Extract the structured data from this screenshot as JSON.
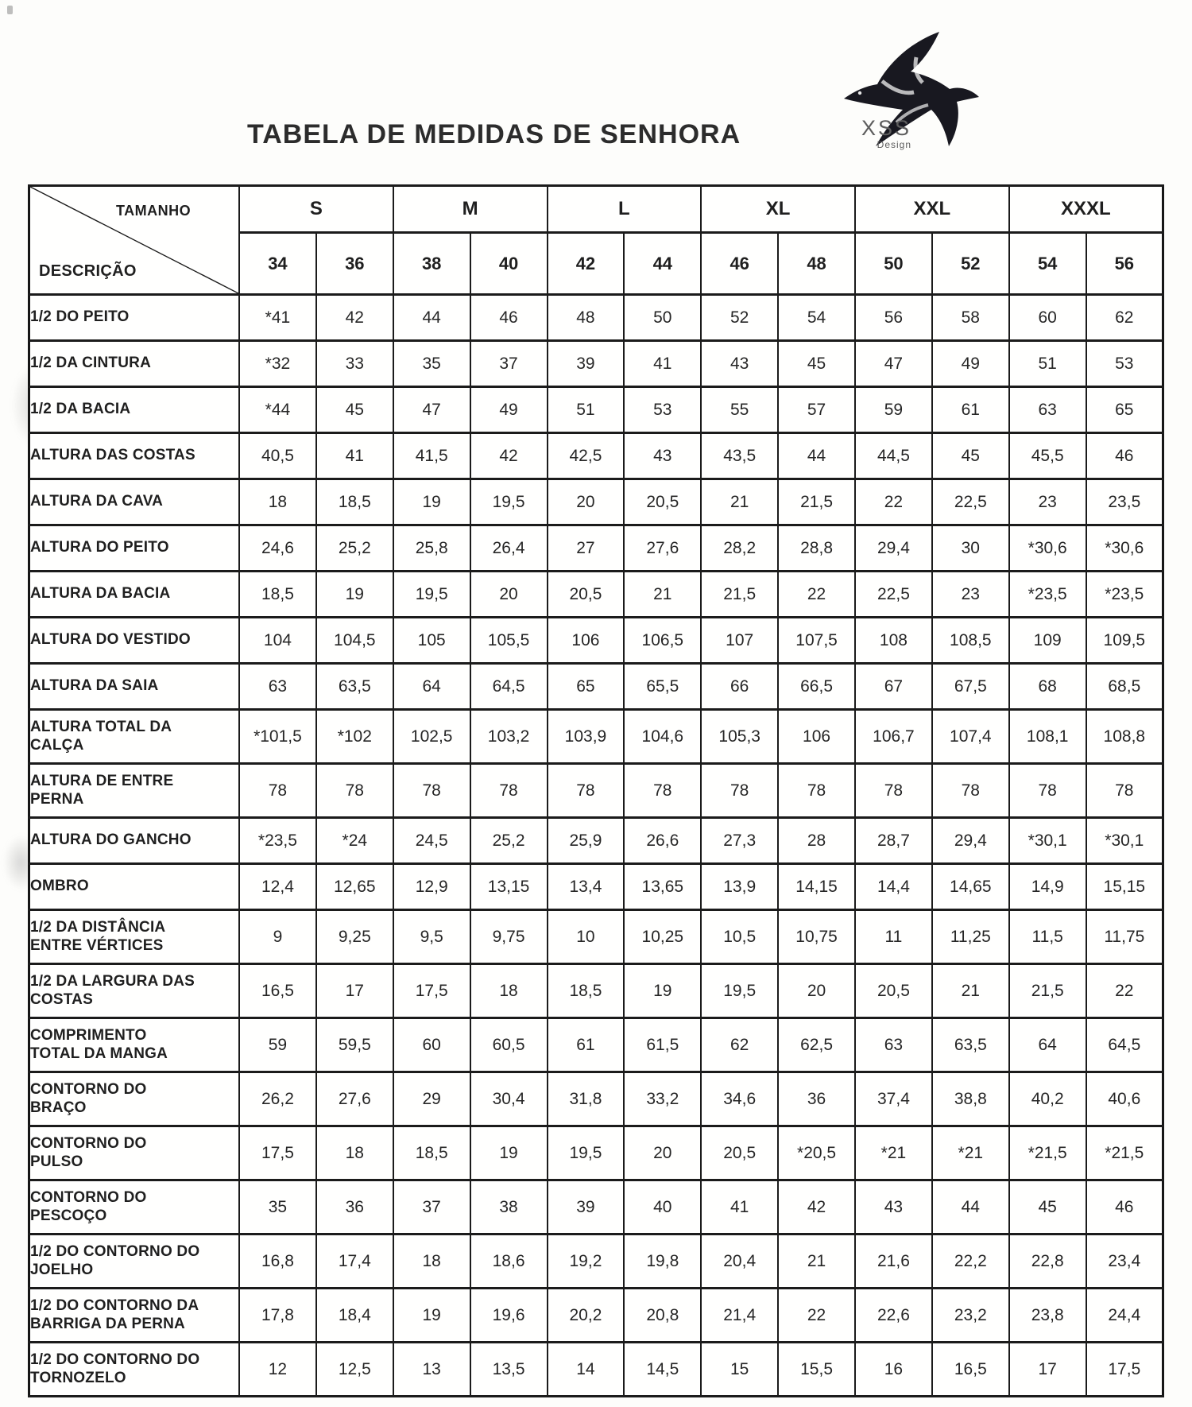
{
  "title": "TABELA DE MEDIDAS DE SENHORA",
  "logo": {
    "brand": "XSS",
    "subtitle": "Design",
    "icon": "swallow-bird"
  },
  "colors": {
    "ink": "#1f1f1f",
    "paper": "#fdfdfb",
    "border": "#1b1b1b"
  },
  "table": {
    "corner_top_label": "TAMANHO",
    "corner_bottom_label": "DESCRIÇÃO",
    "size_groups": [
      {
        "label": "S",
        "columns": [
          "34",
          "36"
        ]
      },
      {
        "label": "M",
        "columns": [
          "38",
          "40"
        ]
      },
      {
        "label": "L",
        "columns": [
          "42",
          "44"
        ]
      },
      {
        "label": "XL",
        "columns": [
          "46",
          "48"
        ]
      },
      {
        "label": "XXL",
        "columns": [
          "50",
          "52"
        ]
      },
      {
        "label": "XXXL",
        "columns": [
          "54",
          "56"
        ]
      }
    ],
    "size_columns": [
      "34",
      "36",
      "38",
      "40",
      "42",
      "44",
      "46",
      "48",
      "50",
      "52",
      "54",
      "56"
    ],
    "rows": [
      {
        "label": "1/2 DO PEITO",
        "values": [
          "*41",
          "42",
          "44",
          "46",
          "48",
          "50",
          "52",
          "54",
          "56",
          "58",
          "60",
          "62"
        ]
      },
      {
        "label": "1/2 DA CINTURA",
        "values": [
          "*32",
          "33",
          "35",
          "37",
          "39",
          "41",
          "43",
          "45",
          "47",
          "49",
          "51",
          "53"
        ]
      },
      {
        "label": "1/2 DA BACIA",
        "values": [
          "*44",
          "45",
          "47",
          "49",
          "51",
          "53",
          "55",
          "57",
          "59",
          "61",
          "63",
          "65"
        ]
      },
      {
        "label": "ALTURA DAS COSTAS",
        "values": [
          "40,5",
          "41",
          "41,5",
          "42",
          "42,5",
          "43",
          "43,5",
          "44",
          "44,5",
          "45",
          "45,5",
          "46"
        ]
      },
      {
        "label": "ALTURA DA CAVA",
        "values": [
          "18",
          "18,5",
          "19",
          "19,5",
          "20",
          "20,5",
          "21",
          "21,5",
          "22",
          "22,5",
          "23",
          "23,5"
        ]
      },
      {
        "label": "ALTURA DO PEITO",
        "values": [
          "24,6",
          "25,2",
          "25,8",
          "26,4",
          "27",
          "27,6",
          "28,2",
          "28,8",
          "29,4",
          "30",
          "*30,6",
          "*30,6"
        ]
      },
      {
        "label": "ALTURA DA BACIA",
        "values": [
          "18,5",
          "19",
          "19,5",
          "20",
          "20,5",
          "21",
          "21,5",
          "22",
          "22,5",
          "23",
          "*23,5",
          "*23,5"
        ]
      },
      {
        "label": "ALTURA DO VESTIDO",
        "values": [
          "104",
          "104,5",
          "105",
          "105,5",
          "106",
          "106,5",
          "107",
          "107,5",
          "108",
          "108,5",
          "109",
          "109,5"
        ]
      },
      {
        "label": "ALTURA DA SAIA",
        "values": [
          "63",
          "63,5",
          "64",
          "64,5",
          "65",
          "65,5",
          "66",
          "66,5",
          "67",
          "67,5",
          "68",
          "68,5"
        ]
      },
      {
        "label": "ALTURA TOTAL DA\nCALÇA",
        "values": [
          "*101,5",
          "*102",
          "102,5",
          "103,2",
          "103,9",
          "104,6",
          "105,3",
          "106",
          "106,7",
          "107,4",
          "108,1",
          "108,8"
        ]
      },
      {
        "label": "ALTURA DE ENTRE\nPERNA",
        "values": [
          "78",
          "78",
          "78",
          "78",
          "78",
          "78",
          "78",
          "78",
          "78",
          "78",
          "78",
          "78"
        ]
      },
      {
        "label": "ALTURA DO GANCHO",
        "values": [
          "*23,5",
          "*24",
          "24,5",
          "25,2",
          "25,9",
          "26,6",
          "27,3",
          "28",
          "28,7",
          "29,4",
          "*30,1",
          "*30,1"
        ]
      },
      {
        "label": "OMBRO",
        "values": [
          "12,4",
          "12,65",
          "12,9",
          "13,15",
          "13,4",
          "13,65",
          "13,9",
          "14,15",
          "14,4",
          "14,65",
          "14,9",
          "15,15"
        ]
      },
      {
        "label": "1/2 DA DISTÂNCIA\nENTRE VÉRTICES",
        "values": [
          "9",
          "9,25",
          "9,5",
          "9,75",
          "10",
          "10,25",
          "10,5",
          "10,75",
          "11",
          "11,25",
          "11,5",
          "11,75"
        ]
      },
      {
        "label": "1/2 DA LARGURA DAS\nCOSTAS",
        "values": [
          "16,5",
          "17",
          "17,5",
          "18",
          "18,5",
          "19",
          "19,5",
          "20",
          "20,5",
          "21",
          "21,5",
          "22"
        ]
      },
      {
        "label": "COMPRIMENTO\nTOTAL DA MANGA",
        "values": [
          "59",
          "59,5",
          "60",
          "60,5",
          "61",
          "61,5",
          "62",
          "62,5",
          "63",
          "63,5",
          "64",
          "64,5"
        ]
      },
      {
        "label": "CONTORNO DO\nBRAÇO",
        "values": [
          "26,2",
          "27,6",
          "29",
          "30,4",
          "31,8",
          "33,2",
          "34,6",
          "36",
          "37,4",
          "38,8",
          "40,2",
          "40,6"
        ]
      },
      {
        "label": "CONTORNO DO\nPULSO",
        "values": [
          "17,5",
          "18",
          "18,5",
          "19",
          "19,5",
          "20",
          "20,5",
          "*20,5",
          "*21",
          "*21",
          "*21,5",
          "*21,5"
        ]
      },
      {
        "label": "CONTORNO DO\nPESCOÇO",
        "values": [
          "35",
          "36",
          "37",
          "38",
          "39",
          "40",
          "41",
          "42",
          "43",
          "44",
          "45",
          "46"
        ]
      },
      {
        "label": "1/2 DO CONTORNO DO\nJOELHO",
        "values": [
          "16,8",
          "17,4",
          "18",
          "18,6",
          "19,2",
          "19,8",
          "20,4",
          "21",
          "21,6",
          "22,2",
          "22,8",
          "23,4"
        ]
      },
      {
        "label": "1/2 DO CONTORNO DA\nBARRIGA DA PERNA",
        "values": [
          "17,8",
          "18,4",
          "19",
          "19,6",
          "20,2",
          "20,8",
          "21,4",
          "22",
          "22,6",
          "23,2",
          "23,8",
          "24,4"
        ]
      },
      {
        "label": "1/2 DO CONTORNO DO\nTORNOZELO",
        "values": [
          "12",
          "12,5",
          "13",
          "13,5",
          "14",
          "14,5",
          "15",
          "15,5",
          "16",
          "16,5",
          "17",
          "17,5"
        ]
      }
    ]
  }
}
